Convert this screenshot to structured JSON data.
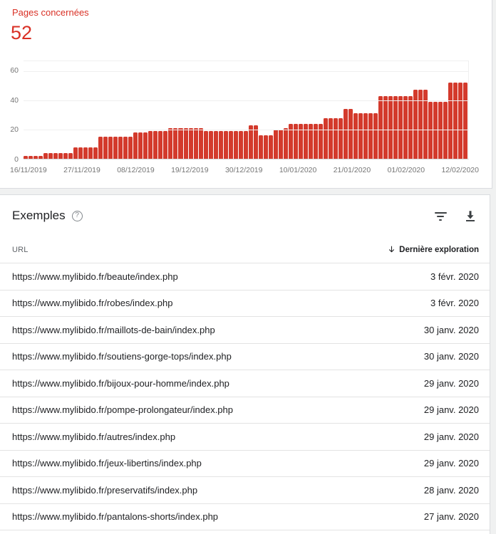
{
  "colors": {
    "accent_red": "#d93025",
    "bar_red": "#d33a2c",
    "text_dark": "#202124",
    "text_gray": "#5f6368",
    "axis_gray": "#757575",
    "divider": "#e3e3e3",
    "card_border": "#dadce0",
    "page_bg": "#f0f1f1"
  },
  "summary": {
    "label": "Pages concernées",
    "value": "52"
  },
  "chart_data": {
    "type": "bar",
    "title": "Pages concernées",
    "xlabel": "",
    "ylabel": "",
    "grid": true,
    "legend": "none",
    "y_ticks": [
      0,
      20,
      40,
      60
    ],
    "y_max": 66.7,
    "x_tick_labels": [
      "16/11/2019",
      "27/11/2019",
      "08/12/2019",
      "19/12/2019",
      "30/12/2019",
      "10/01/2020",
      "21/01/2020",
      "01/02/2020",
      "12/02/2020"
    ],
    "x_start": "16/11/2019",
    "x_end": "12/02/2020",
    "values": [
      2,
      2,
      2,
      2,
      4,
      4,
      4,
      4,
      4,
      4,
      8,
      8,
      8,
      8,
      8,
      15,
      15,
      15,
      15,
      15,
      15,
      15,
      18,
      18,
      18,
      19,
      19,
      19,
      19,
      21,
      21,
      21,
      21,
      21,
      21,
      21,
      19,
      19,
      19,
      19,
      19,
      19,
      19,
      19,
      19,
      23,
      23,
      16,
      16,
      16,
      20,
      20,
      21,
      24,
      24,
      24,
      24,
      24,
      24,
      24,
      28,
      28,
      28,
      28,
      34,
      34,
      31,
      31,
      31,
      31,
      31,
      43,
      43,
      43,
      43,
      43,
      43,
      43,
      47,
      47,
      47,
      39,
      39,
      39,
      39,
      52,
      52,
      52,
      52
    ]
  },
  "examples": {
    "title": "Exemples",
    "help_icon": "help-circle",
    "sort_direction": "descending",
    "columns": {
      "url": "URL",
      "last_crawl": "Dernière exploration"
    },
    "rows": [
      {
        "url": "https://www.mylibido.fr/beaute/index.php",
        "date": "3 févr. 2020"
      },
      {
        "url": "https://www.mylibido.fr/robes/index.php",
        "date": "3 févr. 2020"
      },
      {
        "url": "https://www.mylibido.fr/maillots-de-bain/index.php",
        "date": "30 janv. 2020"
      },
      {
        "url": "https://www.mylibido.fr/soutiens-gorge-tops/index.php",
        "date": "30 janv. 2020"
      },
      {
        "url": "https://www.mylibido.fr/bijoux-pour-homme/index.php",
        "date": "29 janv. 2020"
      },
      {
        "url": "https://www.mylibido.fr/pompe-prolongateur/index.php",
        "date": "29 janv. 2020"
      },
      {
        "url": "https://www.mylibido.fr/autres/index.php",
        "date": "29 janv. 2020"
      },
      {
        "url": "https://www.mylibido.fr/jeux-libertins/index.php",
        "date": "29 janv. 2020"
      },
      {
        "url": "https://www.mylibido.fr/preservatifs/index.php",
        "date": "28 janv. 2020"
      },
      {
        "url": "https://www.mylibido.fr/pantalons-shorts/index.php",
        "date": "27 janv. 2020"
      }
    ]
  }
}
